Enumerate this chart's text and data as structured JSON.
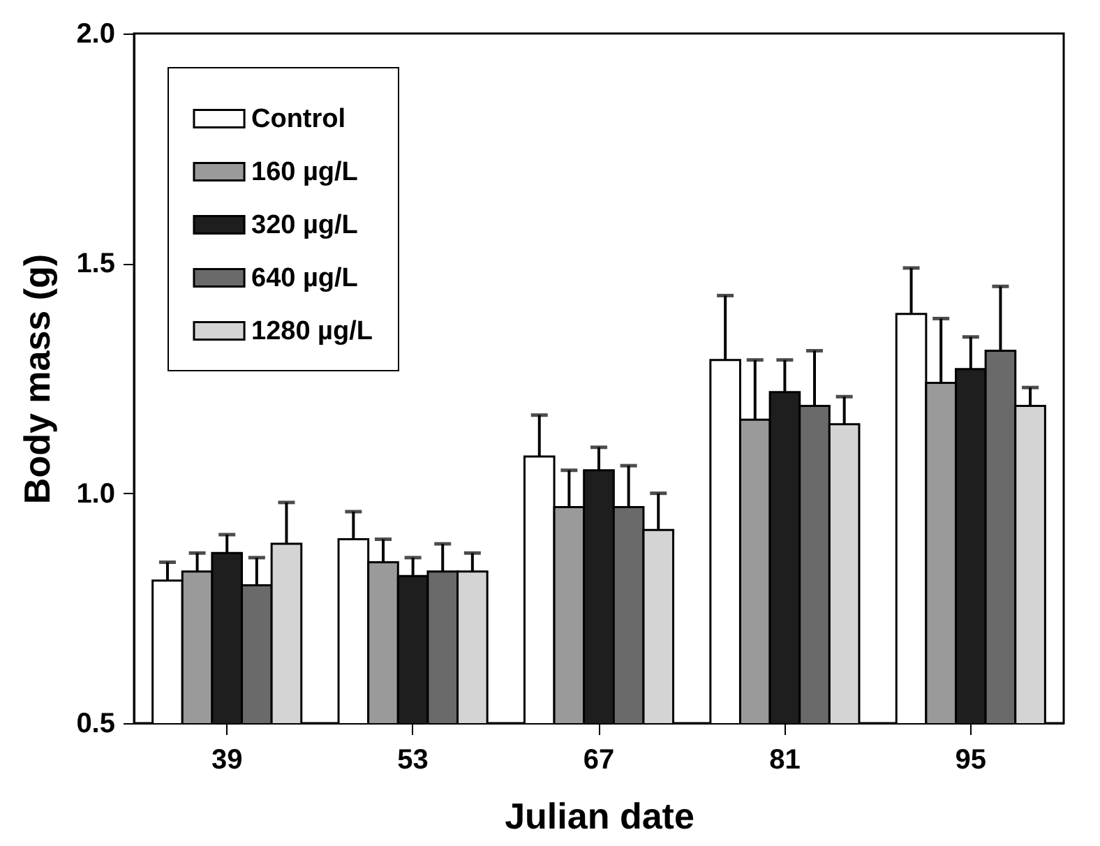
{
  "chart_data": {
    "type": "bar",
    "xlabel": "Julian date",
    "ylabel": "Body mass (g)",
    "categories": [
      "39",
      "53",
      "67",
      "81",
      "95"
    ],
    "series": [
      {
        "name": "Control",
        "color": "#ffffff",
        "values": [
          0.81,
          0.9,
          1.08,
          1.29,
          1.39
        ],
        "errors": [
          [
            0.81,
            0.85
          ],
          [
            0.9,
            0.96
          ],
          [
            1.08,
            1.17
          ],
          [
            1.29,
            1.43
          ],
          [
            1.39,
            1.49
          ]
        ]
      },
      {
        "name": "160 µg/L",
        "color": "#9a9a9a",
        "values": [
          0.83,
          0.85,
          0.97,
          1.16,
          1.24
        ],
        "errors": [
          [
            0.83,
            0.87
          ],
          [
            0.85,
            0.9
          ],
          [
            0.97,
            1.05
          ],
          [
            1.16,
            1.29
          ],
          [
            1.24,
            1.38
          ]
        ]
      },
      {
        "name": "320 µg/L",
        "color": "#1e1e1e",
        "values": [
          0.87,
          0.82,
          1.05,
          1.22,
          1.27
        ],
        "errors": [
          [
            0.87,
            0.91
          ],
          [
            0.82,
            0.86
          ],
          [
            1.05,
            1.1
          ],
          [
            1.22,
            1.29
          ],
          [
            1.27,
            1.34
          ]
        ]
      },
      {
        "name": "640 µg/L",
        "color": "#6a6a6a",
        "values": [
          0.8,
          0.83,
          0.97,
          1.19,
          1.31
        ],
        "errors": [
          [
            0.8,
            0.86
          ],
          [
            0.83,
            0.89
          ],
          [
            0.97,
            1.06
          ],
          [
            1.19,
            1.31
          ],
          [
            1.31,
            1.45
          ]
        ]
      },
      {
        "name": "1280 µg/L",
        "color": "#d4d4d4",
        "values": [
          0.89,
          0.83,
          0.92,
          1.15,
          1.19
        ],
        "errors": [
          [
            0.89,
            0.98
          ],
          [
            0.83,
            0.87
          ],
          [
            0.92,
            1.0
          ],
          [
            1.15,
            1.21
          ],
          [
            1.19,
            1.23
          ]
        ]
      }
    ],
    "ylim": [
      0.5,
      2.0
    ],
    "yticks": [
      0.5,
      {
        "value": 1,
        "label": "1.0"
      },
      1.5,
      {
        "value": 2,
        "label": "2.0"
      }
    ],
    "grid": false,
    "legend": "top left"
  }
}
